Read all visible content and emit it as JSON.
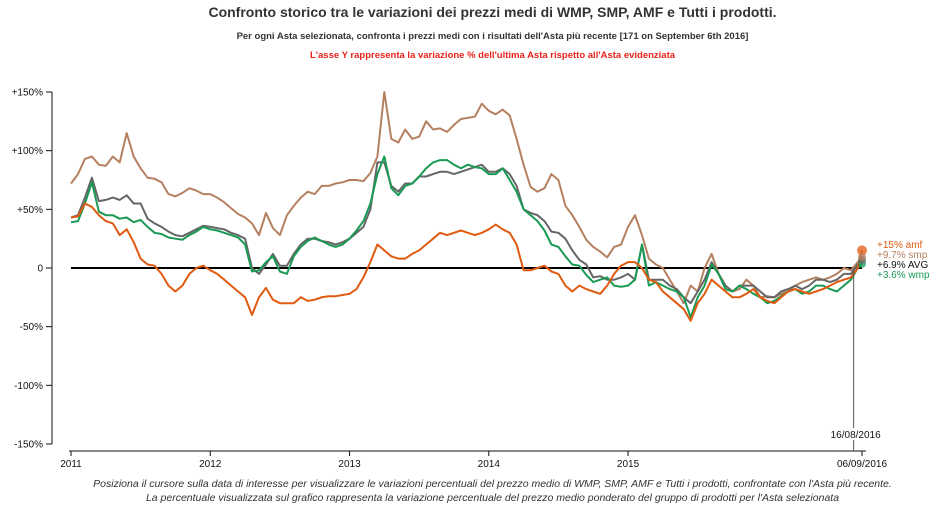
{
  "chart_data": {
    "type": "line",
    "title": "Confronto storico tra le variazioni dei prezzi medi di WMP, SMP, AMF e Tutti i prodotti.",
    "subtitle": "Per ogni Asta selezionata, confronta i prezzi medi con i risultati dell'Asta più recente [171 on September 6th 2016]",
    "note": "L'asse Y rappresenta la variazione % dell'ultima Asta rispetto all'Asta evidenziata",
    "footer": [
      "Posiziona il cursore sulla data di interesse per visualizzare le variazioni percentuali del prezzo medio di WMP, SMP, AMF e Tutti i prodotti, confrontate con l'Asta più recente.",
      "La percentuale visualizzata sul grafico rappresenta la variazione percentuale del prezzo medio ponderato del gruppo di prodotti per l'Asta selezionata"
    ],
    "xlim": [
      2011.0,
      2016.68
    ],
    "ylim": [
      -150,
      150
    ],
    "x_ticks": [
      {
        "value": 2011.0,
        "label": "2011"
      },
      {
        "value": 2012.0,
        "label": "2012"
      },
      {
        "value": 2013.0,
        "label": "2013"
      },
      {
        "value": 2014.0,
        "label": "2014"
      },
      {
        "value": 2015.0,
        "label": "2015"
      },
      {
        "value": 2016.68,
        "label": "06/09/2016"
      }
    ],
    "y_ticks": [
      {
        "value": 150,
        "label": "+150%"
      },
      {
        "value": 100,
        "label": "+100%"
      },
      {
        "value": 50,
        "label": "+50%"
      },
      {
        "value": 0,
        "label": "0"
      },
      {
        "value": -50,
        "label": "-50%"
      },
      {
        "value": -100,
        "label": "-100%"
      },
      {
        "value": -150,
        "label": "-150%"
      }
    ],
    "cursor": {
      "x": 2016.62,
      "label": "16/08/2016"
    },
    "x": [
      2011.0,
      2011.05,
      2011.1,
      2011.15,
      2011.2,
      2011.25,
      2011.3,
      2011.35,
      2011.4,
      2011.45,
      2011.5,
      2011.55,
      2011.6,
      2011.65,
      2011.7,
      2011.75,
      2011.8,
      2011.85,
      2011.9,
      2011.95,
      2012.0,
      2012.05,
      2012.1,
      2012.15,
      2012.2,
      2012.25,
      2012.3,
      2012.35,
      2012.4,
      2012.45,
      2012.5,
      2012.55,
      2012.6,
      2012.65,
      2012.7,
      2012.75,
      2012.8,
      2012.85,
      2012.9,
      2012.95,
      2013.0,
      2013.05,
      2013.1,
      2013.15,
      2013.2,
      2013.25,
      2013.3,
      2013.35,
      2013.4,
      2013.45,
      2013.5,
      2013.55,
      2013.6,
      2013.65,
      2013.7,
      2013.75,
      2013.8,
      2013.85,
      2013.9,
      2013.95,
      2014.0,
      2014.05,
      2014.1,
      2014.15,
      2014.2,
      2014.25,
      2014.3,
      2014.35,
      2014.4,
      2014.45,
      2014.5,
      2014.55,
      2014.6,
      2014.65,
      2014.7,
      2014.75,
      2014.8,
      2014.85,
      2014.9,
      2014.95,
      2015.0,
      2015.05,
      2015.1,
      2015.15,
      2015.2,
      2015.25,
      2015.3,
      2015.35,
      2015.4,
      2015.45,
      2015.5,
      2015.55,
      2015.6,
      2015.65,
      2015.7,
      2015.75,
      2015.8,
      2015.85,
      2015.9,
      2015.95,
      2016.0,
      2016.05,
      2016.1,
      2016.15,
      2016.2,
      2016.25,
      2016.3,
      2016.35,
      2016.4,
      2016.45,
      2016.5,
      2016.55,
      2016.6,
      2016.65,
      2016.68
    ],
    "series": [
      {
        "name": "smp",
        "color": "#b5805f",
        "values": [
          72,
          80,
          93,
          95,
          88,
          87,
          95,
          90,
          115,
          95,
          85,
          77,
          76,
          73,
          63,
          61,
          64,
          68,
          66,
          63,
          63,
          60,
          56,
          51,
          46,
          43,
          38,
          28,
          47,
          34,
          28,
          45,
          53,
          60,
          65,
          63,
          70,
          70,
          72,
          73,
          75,
          75,
          74,
          81,
          95,
          150,
          110,
          107,
          118,
          110,
          112,
          125,
          118,
          119,
          116,
          122,
          127,
          128,
          129,
          140,
          134,
          131,
          135,
          130,
          110,
          88,
          69,
          65,
          68,
          80,
          75,
          53,
          45,
          35,
          24,
          18,
          14,
          9,
          18,
          20,
          35,
          45,
          28,
          8,
          3,
          0,
          -10,
          -20,
          -30,
          -15,
          -20,
          0,
          12,
          -5,
          -15,
          -20,
          -18,
          -10,
          -15,
          -25,
          -24,
          -25,
          -22,
          -20,
          -15,
          -12,
          -10,
          -8,
          -10,
          -8,
          -5,
          0,
          -2,
          5,
          9.7
        ]
      },
      {
        "name": "AVG",
        "color": "#666666",
        "values": [
          43,
          45,
          60,
          77,
          57,
          58,
          60,
          58,
          62,
          55,
          55,
          42,
          38,
          35,
          31,
          28,
          27,
          30,
          33,
          36,
          35,
          34,
          33,
          30,
          28,
          25,
          0,
          -5,
          3,
          12,
          2,
          2,
          12,
          20,
          25,
          25,
          23,
          22,
          20,
          22,
          25,
          30,
          35,
          50,
          90,
          90,
          70,
          65,
          72,
          72,
          78,
          78,
          80,
          82,
          82,
          80,
          82,
          84,
          86,
          88,
          82,
          82,
          85,
          80,
          70,
          50,
          47,
          45,
          40,
          31,
          30,
          25,
          15,
          7,
          3,
          -8,
          -7,
          -10,
          -10,
          -8,
          -5,
          -10,
          20,
          -10,
          -10,
          -10,
          -15,
          -18,
          -25,
          -30,
          -20,
          -10,
          5,
          -5,
          -15,
          -20,
          -15,
          -15,
          -15,
          -20,
          -25,
          -25,
          -20,
          -18,
          -15,
          -18,
          -15,
          -10,
          -10,
          -12,
          -10,
          -5,
          -5,
          3,
          6.9
        ]
      },
      {
        "name": "wmp",
        "color": "#1a9a55",
        "values": [
          39,
          40,
          55,
          73,
          48,
          45,
          45,
          42,
          43,
          39,
          41,
          35,
          30,
          29,
          26,
          25,
          24,
          28,
          31,
          35,
          33,
          32,
          30,
          28,
          26,
          20,
          -3,
          -2,
          5,
          10,
          -3,
          -5,
          10,
          18,
          23,
          26,
          23,
          20,
          18,
          20,
          25,
          32,
          40,
          55,
          80,
          95,
          68,
          62,
          70,
          72,
          78,
          85,
          90,
          92,
          92,
          88,
          85,
          88,
          86,
          85,
          80,
          80,
          85,
          75,
          65,
          50,
          45,
          40,
          32,
          20,
          18,
          10,
          3,
          2,
          -6,
          -12,
          -10,
          -8,
          -15,
          -16,
          -15,
          -10,
          20,
          -15,
          -12,
          -15,
          -18,
          -20,
          -25,
          -42,
          -25,
          -15,
          3,
          -5,
          -18,
          -20,
          -15,
          -18,
          -22,
          -25,
          -30,
          -28,
          -24,
          -20,
          -18,
          -22,
          -20,
          -15,
          -15,
          -18,
          -20,
          -15,
          -10,
          0,
          3.6
        ]
      },
      {
        "name": "amf",
        "color": "#e05a10",
        "values": [
          43,
          44,
          55,
          52,
          45,
          40,
          38,
          28,
          33,
          22,
          8,
          3,
          2,
          -5,
          -15,
          -20,
          -15,
          -5,
          0,
          2,
          -2,
          -5,
          -10,
          -15,
          -20,
          -25,
          -40,
          -25,
          -17,
          -27,
          -30,
          -30,
          -30,
          -25,
          -28,
          -27,
          -25,
          -24,
          -24,
          -23,
          -22,
          -18,
          -8,
          5,
          20,
          15,
          10,
          8,
          8,
          12,
          15,
          20,
          25,
          30,
          28,
          30,
          32,
          30,
          28,
          30,
          33,
          37,
          33,
          30,
          20,
          -2,
          -2,
          0,
          2,
          -3,
          -5,
          -15,
          -20,
          -15,
          -18,
          -20,
          -22,
          -15,
          -5,
          2,
          5,
          5,
          0,
          -10,
          -12,
          -20,
          -25,
          -30,
          -35,
          -45,
          -30,
          -22,
          -10,
          -15,
          -20,
          -25,
          -25,
          -22,
          -18,
          -25,
          -28,
          -30,
          -25,
          -20,
          -18,
          -20,
          -22,
          -20,
          -18,
          -15,
          -12,
          -10,
          -8,
          0,
          15
        ]
      }
    ],
    "legend": [
      {
        "name": "amf",
        "label": "+15% amf",
        "color": "#e05a10"
      },
      {
        "name": "smp",
        "label": "+9.7% smp",
        "color": "#b5805f"
      },
      {
        "name": "AVG",
        "label": "+6.9% AVG",
        "color": "#111111"
      },
      {
        "name": "wmp",
        "label": "+3.6% wmp",
        "color": "#1a9a55"
      }
    ]
  }
}
